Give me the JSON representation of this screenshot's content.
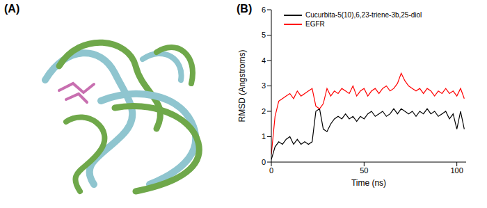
{
  "panel_labels": [
    "(A)",
    "(B)"
  ],
  "chart_data": {
    "type": "line",
    "x_label": "Time (ns)",
    "y_label": "RMSD (Angstroms)",
    "x": [
      0,
      2,
      4,
      6,
      8,
      10,
      12,
      14,
      16,
      18,
      20,
      22,
      24,
      26,
      28,
      30,
      32,
      34,
      36,
      38,
      40,
      42,
      44,
      46,
      48,
      50,
      52,
      54,
      56,
      58,
      60,
      62,
      64,
      66,
      68,
      70,
      72,
      74,
      76,
      78,
      80,
      82,
      84,
      86,
      88,
      90,
      92,
      94,
      96,
      98,
      100,
      102,
      104
    ],
    "series": [
      {
        "name": "Cucurbita-5(10),6,23-triene-3b,25-diol",
        "color": "#000000",
        "values": [
          0.1,
          0.6,
          0.8,
          0.7,
          0.9,
          1.0,
          0.7,
          0.9,
          0.7,
          0.8,
          0.7,
          0.8,
          2.0,
          2.1,
          1.3,
          1.2,
          1.5,
          1.7,
          1.8,
          1.7,
          1.9,
          1.7,
          1.8,
          1.6,
          1.8,
          1.7,
          1.9,
          2.0,
          1.8,
          1.9,
          2.0,
          1.8,
          1.9,
          2.1,
          1.9,
          2.1,
          2.0,
          1.9,
          2.0,
          1.8,
          2.0,
          1.9,
          2.1,
          1.9,
          2.0,
          1.8,
          1.9,
          2.0,
          1.7,
          1.9,
          1.3,
          2.0,
          1.3
        ]
      },
      {
        "name": "EGFR",
        "color": "#ff0000",
        "values": [
          0.3,
          1.8,
          2.4,
          2.5,
          2.6,
          2.7,
          2.5,
          2.8,
          2.6,
          2.7,
          2.8,
          2.9,
          2.2,
          2.1,
          2.3,
          2.9,
          2.6,
          2.8,
          2.7,
          2.9,
          2.8,
          2.7,
          3.0,
          2.6,
          2.8,
          2.9,
          2.6,
          2.8,
          2.9,
          2.7,
          2.9,
          3.0,
          2.8,
          2.9,
          3.1,
          3.5,
          3.2,
          3.0,
          2.9,
          2.8,
          2.9,
          2.7,
          2.9,
          2.8,
          2.6,
          2.8,
          2.7,
          2.9,
          2.7,
          2.8,
          2.6,
          2.9,
          2.5
        ]
      }
    ],
    "xlim": [
      0,
      105
    ],
    "xticks": [
      0,
      50,
      100
    ],
    "ylim": [
      0,
      6
    ],
    "yticks": [
      0,
      1,
      2,
      3,
      4,
      5,
      6
    ],
    "legend": "upper left",
    "grid": false
  }
}
